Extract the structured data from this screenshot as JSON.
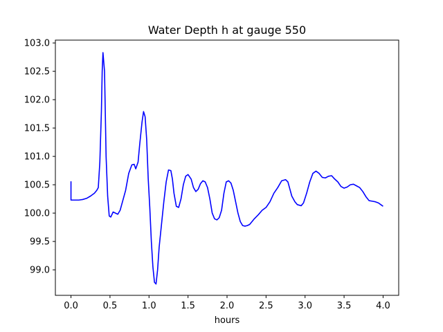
{
  "chart_data": {
    "type": "line",
    "title": "Water Depth h at gauge 550",
    "xlabel": "hours",
    "ylabel": "",
    "xlim": [
      -0.2,
      4.2
    ],
    "ylim": [
      98.55,
      103.05
    ],
    "xticks": [
      0.0,
      0.5,
      1.0,
      1.5,
      2.0,
      2.5,
      3.0,
      3.5,
      4.0
    ],
    "xtick_labels": [
      "0.0",
      "0.5",
      "1.0",
      "1.5",
      "2.0",
      "2.5",
      "3.0",
      "3.5",
      "4.0"
    ],
    "yticks": [
      99.0,
      99.5,
      100.0,
      100.5,
      101.0,
      101.5,
      102.0,
      102.5,
      103.0
    ],
    "ytick_labels": [
      "99.0",
      "99.5",
      "100.0",
      "100.5",
      "101.0",
      "101.5",
      "102.0",
      "102.5",
      "103.0"
    ],
    "grid": false,
    "legend": "none",
    "series": [
      {
        "color": "#0000ff",
        "x": [
          0.0,
          0.0,
          0.05,
          0.1,
          0.15,
          0.2,
          0.25,
          0.3,
          0.33,
          0.35,
          0.37,
          0.39,
          0.4,
          0.41,
          0.43,
          0.45,
          0.47,
          0.49,
          0.51,
          0.54,
          0.57,
          0.6,
          0.63,
          0.66,
          0.7,
          0.74,
          0.78,
          0.81,
          0.83,
          0.86,
          0.88,
          0.91,
          0.93,
          0.95,
          0.97,
          0.99,
          1.01,
          1.03,
          1.05,
          1.07,
          1.09,
          1.11,
          1.13,
          1.16,
          1.19,
          1.22,
          1.25,
          1.28,
          1.3,
          1.32,
          1.35,
          1.38,
          1.41,
          1.44,
          1.47,
          1.5,
          1.54,
          1.57,
          1.6,
          1.63,
          1.66,
          1.69,
          1.72,
          1.75,
          1.78,
          1.81,
          1.84,
          1.87,
          1.9,
          1.93,
          1.96,
          1.99,
          2.02,
          2.05,
          2.08,
          2.11,
          2.14,
          2.17,
          2.2,
          2.23,
          2.26,
          2.29,
          2.32,
          2.35,
          2.4,
          2.45,
          2.5,
          2.55,
          2.6,
          2.65,
          2.7,
          2.75,
          2.78,
          2.8,
          2.83,
          2.87,
          2.9,
          2.95,
          2.98,
          3.02,
          3.06,
          3.1,
          3.14,
          3.18,
          3.22,
          3.26,
          3.3,
          3.34,
          3.38,
          3.42,
          3.46,
          3.5,
          3.54,
          3.58,
          3.62,
          3.66,
          3.7,
          3.74,
          3.78,
          3.82,
          3.86,
          3.9,
          3.94,
          3.97,
          4.0
        ],
        "y": [
          100.56,
          100.23,
          100.23,
          100.23,
          100.24,
          100.26,
          100.3,
          100.35,
          100.4,
          100.45,
          100.9,
          101.8,
          102.5,
          102.83,
          102.5,
          101.0,
          100.3,
          99.95,
          99.93,
          100.02,
          100.0,
          99.98,
          100.05,
          100.2,
          100.4,
          100.7,
          100.85,
          100.86,
          100.78,
          100.9,
          101.2,
          101.6,
          101.79,
          101.7,
          101.3,
          100.6,
          100.1,
          99.5,
          99.05,
          98.78,
          98.75,
          99.0,
          99.4,
          99.8,
          100.2,
          100.55,
          100.76,
          100.75,
          100.6,
          100.35,
          100.12,
          100.1,
          100.25,
          100.5,
          100.65,
          100.68,
          100.6,
          100.45,
          100.38,
          100.42,
          100.52,
          100.57,
          100.55,
          100.45,
          100.25,
          100.0,
          99.9,
          99.88,
          99.92,
          100.05,
          100.35,
          100.55,
          100.57,
          100.53,
          100.4,
          100.2,
          100.0,
          99.85,
          99.78,
          99.77,
          99.78,
          99.8,
          99.85,
          99.9,
          99.97,
          100.05,
          100.1,
          100.2,
          100.35,
          100.45,
          100.57,
          100.59,
          100.55,
          100.45,
          100.3,
          100.2,
          100.15,
          100.13,
          100.18,
          100.35,
          100.55,
          100.7,
          100.74,
          100.7,
          100.63,
          100.62,
          100.65,
          100.66,
          100.6,
          100.55,
          100.47,
          100.44,
          100.46,
          100.5,
          100.51,
          100.48,
          100.45,
          100.38,
          100.29,
          100.22,
          100.21,
          100.2,
          100.18,
          100.15,
          100.12
        ]
      }
    ]
  }
}
